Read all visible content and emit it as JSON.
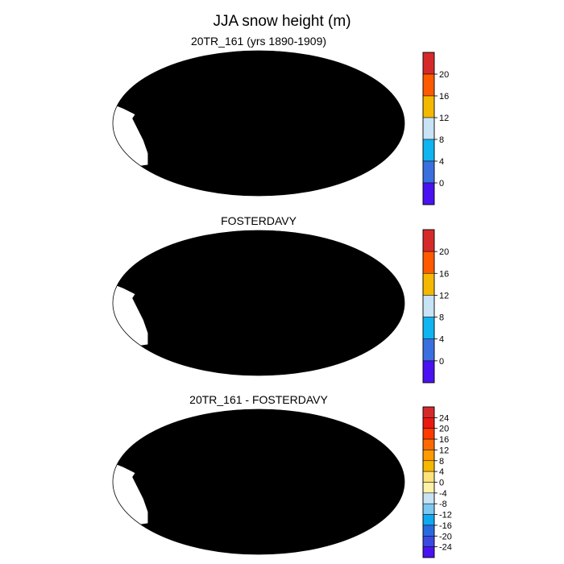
{
  "figure": {
    "title": "JJA snow height (m)"
  },
  "colors": {
    "ocean": "#ffffff",
    "land_base": "#3a6fe0",
    "diff_base": "#fff2a8",
    "outline": "#000000"
  },
  "panels": [
    {
      "title": "20TR_161 (yrs 1890-1909)",
      "base_color": "#3a6fe0",
      "colorbar": {
        "ticks": [
          "20",
          "16",
          "12",
          "8",
          "4",
          "0"
        ],
        "colors": [
          "#d62a2a",
          "#ff5a00",
          "#f5b800",
          "#c7e3f5",
          "#10b4f0",
          "#3a6fe0",
          "#4a12f0"
        ]
      },
      "overlays": [
        "arctic",
        "antarctica"
      ]
    },
    {
      "title": "FOSTERDAVY",
      "base_color": "#3a6fe0",
      "colorbar": {
        "ticks": [
          "20",
          "16",
          "12",
          "8",
          "4",
          "0"
        ],
        "colors": [
          "#d62a2a",
          "#ff5a00",
          "#f5b800",
          "#c7e3f5",
          "#10b4f0",
          "#3a6fe0",
          "#4a12f0"
        ]
      },
      "overlays": []
    },
    {
      "title": "20TR_161 - FOSTERDAVY",
      "base_color": "#fff2a8",
      "colorbar": {
        "ticks": [
          "24",
          "20",
          "16",
          "12",
          "8",
          "4",
          "0",
          "-4",
          "-8",
          "-12",
          "-16",
          "-20",
          "-24"
        ],
        "colors": [
          "#d62a2a",
          "#ea1a12",
          "#ff3a00",
          "#ff6a00",
          "#ff9a00",
          "#f5b800",
          "#ffe27a",
          "#fff2a8",
          "#c7e3f5",
          "#7cc8f0",
          "#10a8f0",
          "#2a6ae0",
          "#3a4ae0",
          "#4a12f0"
        ]
      },
      "overlays": [
        "arctic",
        "antarctica",
        "tibet"
      ]
    }
  ]
}
